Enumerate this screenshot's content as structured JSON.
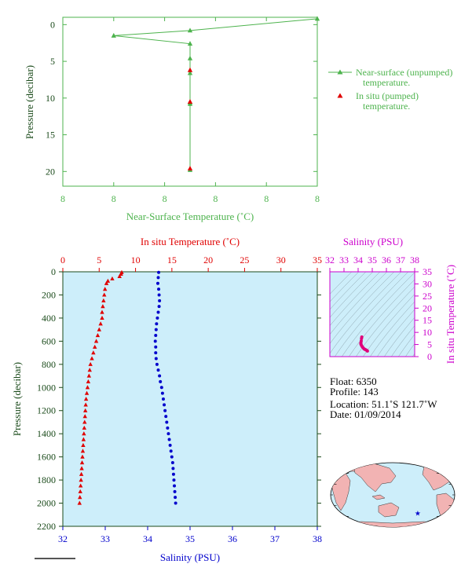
{
  "colors": {
    "green": "#4db34d",
    "red": "#e00000",
    "blue": "#0000cc",
    "magenta": "#cc00cc",
    "axis_dark": "#1a4a1a",
    "plot_bg": "#cdeefa"
  },
  "chart_data": [
    {
      "type": "line",
      "xlabel": "Near-Surface Temperature (˚C)",
      "ylabel": "Pressure (decibar)",
      "x_tick_labels": [
        "8",
        "8",
        "8",
        "8",
        "8",
        "8"
      ],
      "xlim": [
        7.2,
        8.8
      ],
      "ylim": [
        22,
        -1
      ],
      "y_ticks": [
        0,
        5,
        10,
        15,
        20
      ],
      "grid": false,
      "legend_position": "right",
      "series": [
        {
          "name": "Near-surface (unpumped) temperature.",
          "marker": "triangle",
          "color": "#4db34d",
          "x": [
            8.8,
            8.0,
            7.52,
            8.0,
            8.0,
            8.0,
            8.0,
            8.0,
            8.0
          ],
          "y": [
            -0.8,
            0.8,
            1.5,
            2.6,
            4.6,
            6.6,
            10.6,
            10.8,
            19.8
          ]
        },
        {
          "name": "In situ (pumped) temperature.",
          "marker": "triangle",
          "color": "#e00000",
          "x": [
            8.0,
            8.0,
            8.0
          ],
          "y": [
            6.2,
            10.5,
            19.6
          ]
        }
      ]
    },
    {
      "type": "scatter",
      "title_top": "In situ Temperature (˚C)",
      "xlabel": "Salinity (PSU)",
      "ylabel": "Pressure (decibar)",
      "temp_axis": {
        "min": 0,
        "max": 35,
        "ticks": [
          0,
          5,
          10,
          15,
          20,
          25,
          30,
          35
        ]
      },
      "sal_axis": {
        "min": 32,
        "max": 38,
        "ticks": [
          32,
          33,
          34,
          35,
          36,
          37,
          38
        ]
      },
      "pressure_axis": {
        "min": 0,
        "max": 2200,
        "ticks": [
          0,
          200,
          400,
          600,
          800,
          1000,
          1200,
          1400,
          1600,
          1800,
          2000,
          2200
        ]
      },
      "series": [
        {
          "name": "In situ Temperature",
          "color": "#e00000",
          "marker": "triangle",
          "pressure": [
            5,
            20,
            40,
            60,
            80,
            100,
            150,
            200,
            250,
            300,
            350,
            400,
            450,
            500,
            550,
            600,
            650,
            700,
            750,
            800,
            850,
            900,
            950,
            1000,
            1050,
            1100,
            1150,
            1200,
            1250,
            1300,
            1350,
            1400,
            1450,
            1500,
            1550,
            1600,
            1650,
            1700,
            1750,
            1800,
            1850,
            1900,
            1950,
            2000
          ],
          "temperature": [
            8.1,
            8.0,
            7.8,
            6.8,
            6.2,
            6.0,
            5.8,
            5.7,
            5.6,
            5.5,
            5.4,
            5.4,
            5.2,
            5.0,
            4.8,
            4.6,
            4.4,
            4.2,
            4.0,
            3.8,
            3.7,
            3.6,
            3.5,
            3.4,
            3.3,
            3.2,
            3.15,
            3.1,
            3.05,
            3.0,
            2.95,
            2.9,
            2.85,
            2.8,
            2.75,
            2.7,
            2.65,
            2.6,
            2.55,
            2.5,
            2.45,
            2.4,
            2.35,
            2.3
          ]
        },
        {
          "name": "Salinity",
          "color": "#0000cc",
          "marker": "dot",
          "pressure": [
            5,
            50,
            100,
            150,
            200,
            250,
            300,
            350,
            400,
            450,
            500,
            550,
            600,
            650,
            700,
            750,
            800,
            850,
            900,
            950,
            1000,
            1050,
            1100,
            1150,
            1200,
            1250,
            1300,
            1350,
            1400,
            1450,
            1500,
            1550,
            1600,
            1650,
            1700,
            1750,
            1800,
            1850,
            1900,
            1950,
            2000
          ],
          "salinity": [
            34.26,
            34.25,
            34.24,
            34.26,
            34.27,
            34.28,
            34.27,
            34.25,
            34.23,
            34.21,
            34.2,
            34.19,
            34.18,
            34.19,
            34.19,
            34.2,
            34.22,
            34.25,
            34.28,
            34.3,
            34.33,
            34.35,
            34.37,
            34.39,
            34.41,
            34.43,
            34.45,
            34.47,
            34.49,
            34.51,
            34.53,
            34.55,
            34.57,
            34.59,
            34.6,
            34.61,
            34.62,
            34.63,
            34.64,
            34.65,
            34.66
          ]
        }
      ]
    },
    {
      "type": "scatter",
      "title_top": "Salinity (PSU)",
      "ylabel": "In situ Temperature (˚C)",
      "sal_axis": {
        "min": 32,
        "max": 38,
        "ticks": [
          32,
          33,
          34,
          35,
          36,
          37,
          38
        ]
      },
      "temp_axis": {
        "min": 0,
        "max": 35,
        "ticks": [
          0,
          5,
          10,
          15,
          20,
          25,
          30,
          35
        ]
      },
      "series": [
        {
          "name": "T-S",
          "color": "#e0007a",
          "salinity": [
            34.26,
            34.24,
            34.22,
            34.2,
            34.19,
            34.21,
            34.25,
            34.3,
            34.36,
            34.42,
            34.48,
            34.55,
            34.62,
            34.66
          ],
          "temperature": [
            8.1,
            7.5,
            6.5,
            5.8,
            5.4,
            5.0,
            4.5,
            4.0,
            3.6,
            3.2,
            3.0,
            2.8,
            2.5,
            2.3
          ]
        }
      ]
    }
  ],
  "info": {
    "float": "Float:  6350",
    "profile": "Profile:  143",
    "location": "Location:  51.1˚S  121.7˚W",
    "date": "Date:  01/09/2014"
  },
  "map": {
    "float_position": {
      "lat": -51.1,
      "lon": -121.7
    },
    "marker_color": "#0000cc"
  }
}
